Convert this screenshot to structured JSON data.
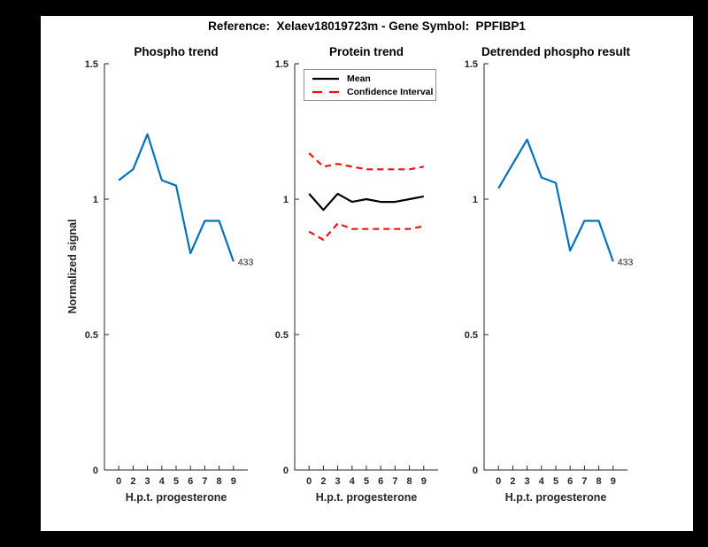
{
  "figure": {
    "title": "Reference:  Xelaev18019723m - Gene Symbol:  PPFIBP1",
    "background": "#000000",
    "canvas": "#FFFFFF"
  },
  "colors": {
    "line_blue": "#0072BD",
    "ci_red": "#F01212",
    "mean_black": "#000000",
    "axis": "#262626",
    "legend_border": "#909090"
  },
  "chart_data": [
    {
      "type": "line",
      "title": "Phospho trend",
      "xlabel": "H.p.t. progesterone",
      "ylabel": "Normalized signal",
      "ylim": [
        0,
        1.5
      ],
      "grid": false,
      "x_tick_labels": [
        "0",
        "2",
        "3",
        "4",
        "5",
        "6",
        "7",
        "8",
        "9"
      ],
      "y_ticks": [
        0,
        0.5,
        1,
        1.5
      ],
      "y_tick_labels": [
        "0",
        "0.5",
        "1",
        "1.5"
      ],
      "series": [
        {
          "name": "phospho-signal",
          "color": "#0072BD",
          "dashed": false,
          "values": [
            1.07,
            1.11,
            1.24,
            1.07,
            1.05,
            0.8,
            0.92,
            0.92,
            0.77
          ]
        }
      ],
      "end_label": "433"
    },
    {
      "type": "line",
      "title": "Protein trend",
      "xlabel": "H.p.t. progesterone",
      "ylim": [
        0,
        1.5
      ],
      "grid": false,
      "legend_position": "top-left",
      "legend": [
        "Mean",
        "Confidence Interval"
      ],
      "x_tick_labels": [
        "0",
        "2",
        "3",
        "4",
        "5",
        "6",
        "7",
        "8",
        "9"
      ],
      "y_ticks": [
        0,
        0.5,
        1,
        1.5
      ],
      "y_tick_labels": [
        "0",
        "0.5",
        "1",
        "1.5"
      ],
      "series": [
        {
          "name": "mean",
          "color": "#000000",
          "dashed": false,
          "values": [
            1.02,
            0.96,
            1.02,
            0.99,
            1.0,
            0.99,
            0.99,
            1.0,
            1.01
          ]
        },
        {
          "name": "ci-upper",
          "color": "#F01212",
          "dashed": true,
          "values": [
            1.17,
            1.12,
            1.13,
            1.12,
            1.11,
            1.11,
            1.11,
            1.11,
            1.12
          ]
        },
        {
          "name": "ci-lower",
          "color": "#F01212",
          "dashed": true,
          "values": [
            0.88,
            0.85,
            0.91,
            0.89,
            0.89,
            0.89,
            0.89,
            0.89,
            0.9
          ]
        }
      ]
    },
    {
      "type": "line",
      "title": "Detrended phospho result",
      "xlabel": "H.p.t. progesterone",
      "ylim": [
        0,
        1.5
      ],
      "grid": false,
      "x_tick_labels": [
        "0",
        "2",
        "3",
        "4",
        "5",
        "6",
        "7",
        "8",
        "9"
      ],
      "y_ticks": [
        0,
        0.5,
        1,
        1.5
      ],
      "y_tick_labels": [
        "0",
        "0.5",
        "1",
        "1.5"
      ],
      "series": [
        {
          "name": "detrended-phospho",
          "color": "#0072BD",
          "dashed": false,
          "values": [
            1.04,
            1.13,
            1.22,
            1.08,
            1.06,
            0.81,
            0.92,
            0.92,
            0.77
          ]
        }
      ],
      "end_label": "433"
    }
  ]
}
